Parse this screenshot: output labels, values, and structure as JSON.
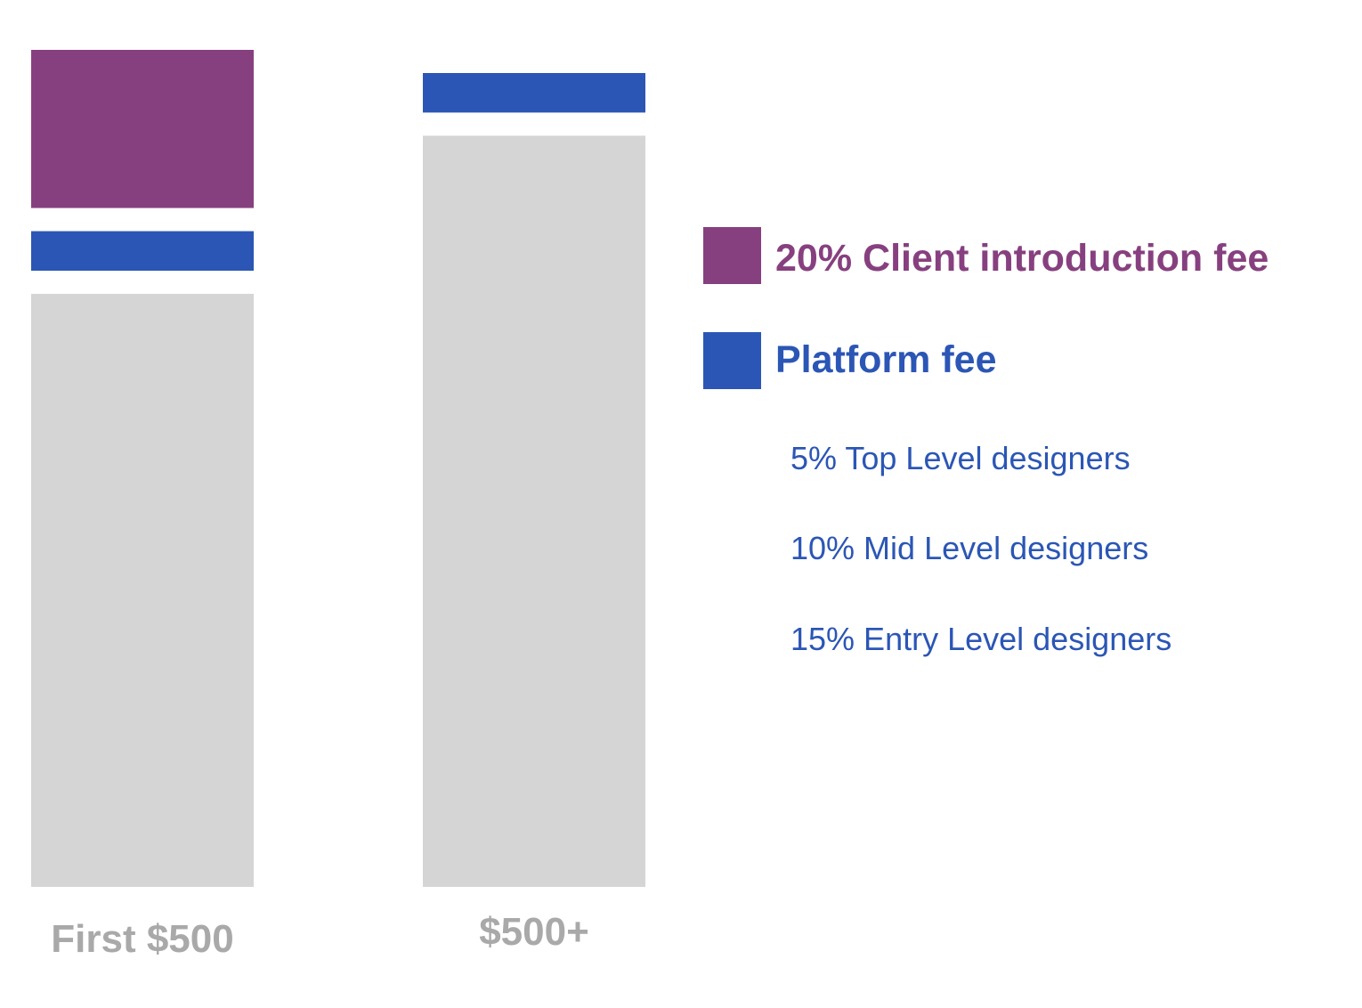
{
  "chart_data": {
    "type": "bar",
    "stacked": true,
    "categories": [
      "First $500",
      "$500+"
    ],
    "series": [
      {
        "name": "20% Client introduction fee",
        "color": "#87407f",
        "values": [
          20,
          0
        ]
      },
      {
        "name": "Platform fee",
        "color": "#2b56b5",
        "values": [
          5,
          5
        ]
      },
      {
        "values": [
          75,
          95
        ],
        "color": "#d5d5d5"
      }
    ],
    "ylim": [
      0,
      100
    ],
    "xlabel": "",
    "ylabel": "",
    "grid": false,
    "legend_position": "right",
    "category_label_color": "#a9a9a9"
  },
  "legend": {
    "items": [
      {
        "label": "20% Client introduction fee",
        "color": "#87407f"
      },
      {
        "label": "Platform fee",
        "color": "#2b56b5"
      }
    ],
    "platform_fee_tiers": [
      "5% Top Level designers",
      "10% Mid Level designers",
      "15% Entry Level designers"
    ],
    "tier_color": "#2b56b5"
  }
}
